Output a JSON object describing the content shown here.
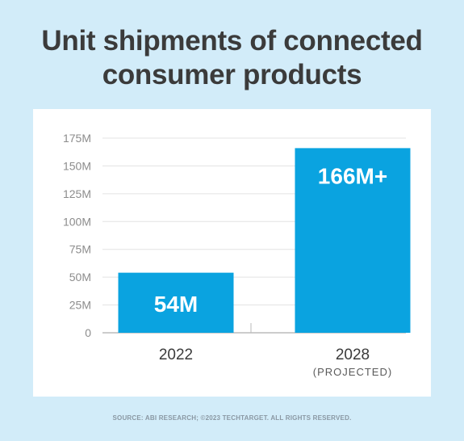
{
  "title_line1": "Unit shipments of connected",
  "title_line2": "consumer products",
  "source": "SOURCE: ABI RESEARCH; ©2023 TECHTARGET. ALL RIGHTS RESERVED.",
  "colors": {
    "bar": "#0aa3e0",
    "background": "#d2ecf9",
    "panel": "#ffffff",
    "gridline": "#e3e3e3",
    "tick_text": "#8c8c8c",
    "category_text": "#3b3b3b",
    "bar_label": "#ffffff"
  },
  "chart_data": {
    "type": "bar",
    "title": "Unit shipments of connected consumer products",
    "categories": [
      "2022",
      "2028"
    ],
    "category_sublabels": [
      "",
      "(PROJECTED)"
    ],
    "values": [
      54,
      166
    ],
    "value_unit": "millions",
    "data_labels": [
      "54M",
      "166M+"
    ],
    "y_ticks": [
      "0",
      "25M",
      "50M",
      "75M",
      "100M",
      "125M",
      "150M",
      "175M"
    ],
    "ylim": [
      0,
      175
    ],
    "grid": true,
    "legend": "none"
  }
}
